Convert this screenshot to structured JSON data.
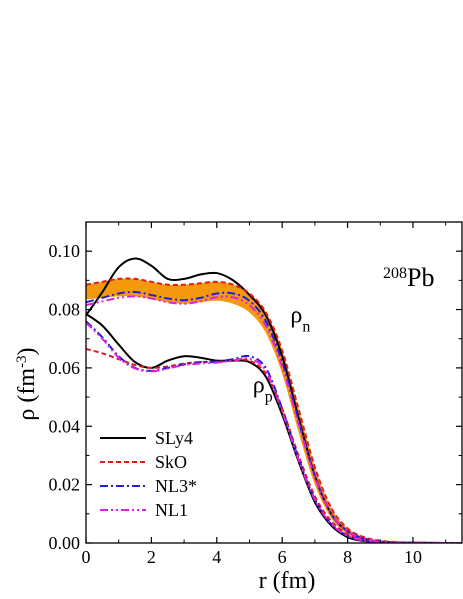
{
  "chart_data": {
    "type": "line",
    "title": "",
    "xlabel": "r (fm)",
    "ylabel_main": "ρ (fm",
    "ylabel_sup": "-3",
    "ylabel_close": ")",
    "xlim": [
      0,
      11.5
    ],
    "ylim": [
      0.0,
      0.11
    ],
    "xticks": [
      0,
      2,
      4,
      6,
      8,
      10
    ],
    "xtick_labels": [
      "0",
      "2",
      "4",
      "6",
      "8",
      "10"
    ],
    "yticks": [
      0.0,
      0.02,
      0.04,
      0.06,
      0.08,
      0.1
    ],
    "ytick_labels": [
      "0.00",
      "0.02",
      "0.04",
      "0.06",
      "0.08",
      "0.10"
    ],
    "grid": false,
    "legend_position": "bottom-left",
    "nucleus_label": {
      "sup": "208",
      "base": "Pb"
    },
    "annotations": [
      {
        "base": "ρ",
        "sub": "n",
        "x": 6.25,
        "y": 0.0755
      },
      {
        "base": "ρ",
        "sub": "p",
        "x": 5.1,
        "y": 0.0515
      }
    ],
    "band": {
      "color": "#f39200",
      "x": [
        0,
        0.5,
        1,
        1.5,
        2,
        2.5,
        3,
        3.5,
        4,
        4.5,
        5,
        5.5,
        6,
        6.5,
        7,
        7.5,
        8,
        8.5,
        9,
        9.5,
        10
      ],
      "upper": [
        0.0885,
        0.0895,
        0.0905,
        0.0905,
        0.0895,
        0.0885,
        0.0885,
        0.089,
        0.0895,
        0.0885,
        0.0855,
        0.079,
        0.066,
        0.046,
        0.026,
        0.012,
        0.005,
        0.002,
        0.0008,
        0.0003,
        0.0001
      ],
      "lower": [
        0.0835,
        0.084,
        0.0845,
        0.0845,
        0.0835,
        0.0825,
        0.082,
        0.0825,
        0.083,
        0.082,
        0.079,
        0.072,
        0.058,
        0.038,
        0.02,
        0.0085,
        0.003,
        0.0012,
        0.0005,
        0.0002,
        0.0001
      ]
    },
    "series": [
      {
        "name": "SLy4",
        "color": "#000000",
        "dash": "solid",
        "neutron": {
          "x": [
            0,
            0.5,
            1,
            1.5,
            2,
            2.5,
            3,
            3.5,
            4,
            4.5,
            5,
            5.5,
            6,
            6.5,
            7,
            7.5,
            8,
            8.5,
            9,
            9.5,
            10,
            11,
            11.5
          ],
          "y": [
            0.078,
            0.086,
            0.0945,
            0.0975,
            0.095,
            0.0905,
            0.0905,
            0.092,
            0.0925,
            0.09,
            0.085,
            0.078,
            0.064,
            0.043,
            0.023,
            0.01,
            0.004,
            0.0015,
            0.0005,
            0.0002,
            0.0001,
            0.0,
            0.0
          ]
        },
        "proton": {
          "x": [
            0,
            0.5,
            1,
            1.5,
            2,
            2.5,
            3,
            3.5,
            4,
            4.5,
            5,
            5.5,
            6,
            6.5,
            7,
            7.5,
            8,
            8.5,
            9,
            9.5,
            10,
            11,
            11.5
          ],
          "y": [
            0.0785,
            0.0745,
            0.068,
            0.062,
            0.06,
            0.0625,
            0.064,
            0.0635,
            0.0625,
            0.0625,
            0.062,
            0.057,
            0.044,
            0.028,
            0.014,
            0.006,
            0.002,
            0.0007,
            0.0002,
            0.0001,
            0.0,
            0.0,
            0.0
          ]
        }
      },
      {
        "name": "SkO",
        "color": "#e41a1c",
        "dash": "dashed",
        "neutron": {
          "x": [
            0,
            0.5,
            1,
            1.5,
            2,
            2.5,
            3,
            3.5,
            4,
            4.5,
            5,
            5.5,
            6,
            6.5,
            7,
            7.5,
            8,
            8.5,
            9,
            9.5,
            10,
            11,
            11.5
          ],
          "y": [
            0.0885,
            0.0895,
            0.0905,
            0.0905,
            0.0895,
            0.0885,
            0.0885,
            0.089,
            0.0895,
            0.0885,
            0.0855,
            0.079,
            0.066,
            0.046,
            0.026,
            0.012,
            0.005,
            0.002,
            0.0008,
            0.0003,
            0.0001,
            0.0,
            0.0
          ]
        },
        "proton": {
          "x": [
            0,
            0.5,
            1,
            1.5,
            2,
            2.5,
            3,
            3.5,
            4,
            4.5,
            5,
            5.5,
            6,
            6.5,
            7,
            7.5,
            8,
            8.5,
            9,
            9.5,
            10,
            11,
            11.5
          ],
          "y": [
            0.0665,
            0.065,
            0.063,
            0.061,
            0.06,
            0.0605,
            0.0615,
            0.062,
            0.062,
            0.0625,
            0.0625,
            0.058,
            0.046,
            0.03,
            0.016,
            0.0075,
            0.003,
            0.001,
            0.0004,
            0.0001,
            0.0,
            0.0,
            0.0
          ]
        }
      },
      {
        "name": "NL3*",
        "color": "#1f1fd6",
        "dash": "dashdot",
        "neutron": {
          "x": [
            0,
            0.5,
            1,
            1.5,
            2,
            2.5,
            3,
            3.5,
            4,
            4.5,
            5,
            5.5,
            6,
            6.5,
            7,
            7.5,
            8,
            8.5,
            9,
            9.5,
            10,
            11,
            11.5
          ],
          "y": [
            0.0825,
            0.084,
            0.0855,
            0.086,
            0.085,
            0.0838,
            0.0832,
            0.084,
            0.0855,
            0.0855,
            0.083,
            0.076,
            0.062,
            0.042,
            0.023,
            0.01,
            0.004,
            0.0015,
            0.0005,
            0.0002,
            0.0001,
            0.0,
            0.0
          ]
        },
        "proton": {
          "x": [
            0,
            0.5,
            1,
            1.5,
            2,
            2.5,
            3,
            3.5,
            4,
            4.5,
            5,
            5.5,
            6,
            6.5,
            7,
            7.5,
            8,
            8.5,
            9,
            9.5,
            10,
            11,
            11.5
          ],
          "y": [
            0.076,
            0.0705,
            0.064,
            0.06,
            0.059,
            0.06,
            0.0612,
            0.062,
            0.0622,
            0.063,
            0.064,
            0.06,
            0.046,
            0.029,
            0.015,
            0.0065,
            0.0025,
            0.0008,
            0.0003,
            0.0001,
            0.0,
            0.0,
            0.0
          ]
        }
      },
      {
        "name": "NL1",
        "color": "#e020e0",
        "dash": "dashdotdot",
        "neutron": {
          "x": [
            0,
            0.5,
            1,
            1.5,
            2,
            2.5,
            3,
            3.5,
            4,
            4.5,
            5,
            5.5,
            6,
            6.5,
            7,
            7.5,
            8,
            8.5,
            9,
            9.5,
            10,
            11,
            11.5
          ],
          "y": [
            0.0815,
            0.0828,
            0.084,
            0.0845,
            0.0838,
            0.0825,
            0.082,
            0.0828,
            0.0842,
            0.0842,
            0.0815,
            0.0745,
            0.0605,
            0.041,
            0.0225,
            0.01,
            0.004,
            0.0015,
            0.0005,
            0.0002,
            0.0001,
            0.0,
            0.0
          ]
        },
        "proton": {
          "x": [
            0,
            0.5,
            1,
            1.5,
            2,
            2.5,
            3,
            3.5,
            4,
            4.5,
            5,
            5.5,
            6,
            6.5,
            7,
            7.5,
            8,
            8.5,
            9,
            9.5,
            10,
            11,
            11.5
          ],
          "y": [
            0.0755,
            0.07,
            0.0635,
            0.0598,
            0.0588,
            0.0598,
            0.061,
            0.0615,
            0.0618,
            0.0625,
            0.0632,
            0.059,
            0.045,
            0.0285,
            0.0148,
            0.0065,
            0.0025,
            0.0008,
            0.0003,
            0.0001,
            0.0,
            0.0,
            0.0
          ]
        }
      }
    ]
  }
}
